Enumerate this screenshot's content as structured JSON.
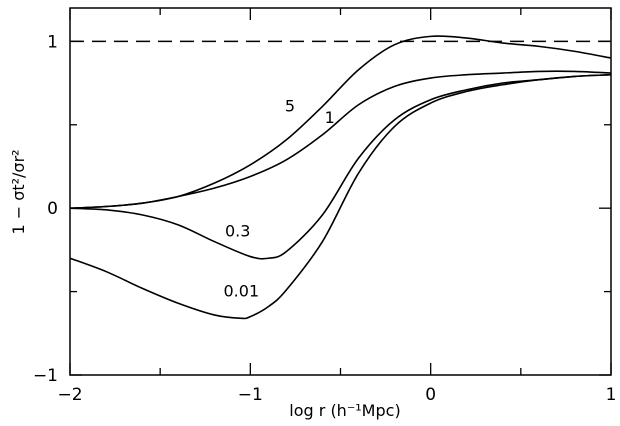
{
  "chart_data": {
    "type": "line",
    "title": "",
    "xlabel": "log r (h⁻¹Mpc)",
    "ylabel": "1 − σt²/σr²",
    "xlim": [
      -2,
      1
    ],
    "ylim": [
      -1,
      1.2
    ],
    "x_ticks": [
      -2,
      -1,
      0,
      1
    ],
    "y_ticks": [
      -1,
      0,
      1
    ],
    "x_tick_labels": [
      "−2",
      "−1",
      "0",
      "1"
    ],
    "y_tick_labels": [
      "−1",
      "0",
      "1"
    ],
    "grid": false,
    "reference_line": {
      "y": 1,
      "style": "dashed"
    },
    "series": [
      {
        "name": "5",
        "x": [
          -2.0,
          -1.8,
          -1.6,
          -1.4,
          -1.2,
          -1.0,
          -0.8,
          -0.6,
          -0.4,
          -0.2,
          0.0,
          0.2,
          0.4,
          0.6,
          0.8,
          1.0
        ],
        "y": [
          0.0,
          0.01,
          0.03,
          0.07,
          0.15,
          0.26,
          0.41,
          0.61,
          0.83,
          0.98,
          1.03,
          1.02,
          0.99,
          0.97,
          0.94,
          0.9
        ]
      },
      {
        "name": "1",
        "x": [
          -2.0,
          -1.8,
          -1.6,
          -1.4,
          -1.2,
          -1.0,
          -0.8,
          -0.6,
          -0.4,
          -0.2,
          0.0,
          0.2,
          0.4,
          0.6,
          0.8,
          1.0
        ],
        "y": [
          0.0,
          0.01,
          0.03,
          0.07,
          0.12,
          0.19,
          0.29,
          0.44,
          0.62,
          0.73,
          0.78,
          0.8,
          0.81,
          0.82,
          0.82,
          0.81
        ]
      },
      {
        "name": "0.3",
        "x": [
          -2.0,
          -1.8,
          -1.6,
          -1.4,
          -1.2,
          -1.0,
          -0.9,
          -0.8,
          -0.6,
          -0.4,
          -0.2,
          0.0,
          0.2,
          0.4,
          0.6,
          0.8,
          1.0
        ],
        "y": [
          0.0,
          -0.01,
          -0.04,
          -0.1,
          -0.2,
          -0.29,
          -0.3,
          -0.26,
          -0.04,
          0.3,
          0.53,
          0.65,
          0.71,
          0.75,
          0.77,
          0.79,
          0.8
        ]
      },
      {
        "name": "0.01",
        "x": [
          -2.0,
          -1.8,
          -1.6,
          -1.4,
          -1.2,
          -1.05,
          -1.0,
          -0.9,
          -0.8,
          -0.6,
          -0.4,
          -0.2,
          0.0,
          0.2,
          0.4,
          0.6,
          0.8,
          1.0
        ],
        "y": [
          -0.3,
          -0.38,
          -0.48,
          -0.57,
          -0.64,
          -0.66,
          -0.65,
          -0.59,
          -0.49,
          -0.2,
          0.21,
          0.49,
          0.63,
          0.7,
          0.74,
          0.77,
          0.79,
          0.8
        ]
      }
    ]
  }
}
